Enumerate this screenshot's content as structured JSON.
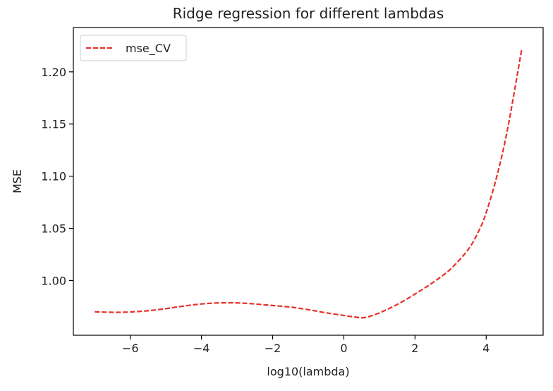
{
  "chart_data": {
    "type": "line",
    "title": "Ridge regression for different lambdas",
    "xlabel": "log10(lambda)",
    "ylabel": "MSE",
    "xlim": [
      -7.6,
      5.6
    ],
    "ylim": [
      0.9475,
      1.2425
    ],
    "xticks": [
      -6,
      -4,
      -2,
      0,
      2,
      4
    ],
    "xtick_labels": [
      "−6",
      "−4",
      "−2",
      "0",
      "2",
      "4"
    ],
    "yticks": [
      1.0,
      1.05,
      1.1,
      1.15,
      1.2
    ],
    "ytick_labels": [
      "1.00",
      "1.05",
      "1.10",
      "1.15",
      "1.20"
    ],
    "grid": false,
    "legend_position": "upper-left",
    "series": [
      {
        "name": "mse_CV",
        "color": "#e8302a",
        "linestyle": "dashed",
        "x": [
          -7,
          -6.5,
          -6,
          -5.5,
          -5,
          -4.5,
          -4,
          -3.5,
          -3,
          -2.5,
          -2,
          -1.5,
          -1,
          -0.5,
          0,
          0.3,
          0.6,
          1,
          1.5,
          2,
          2.5,
          3,
          3.5,
          3.8,
          4,
          4.3,
          4.6,
          5
        ],
        "y": [
          0.97,
          0.9695,
          0.9698,
          0.971,
          0.973,
          0.9755,
          0.9775,
          0.9785,
          0.9785,
          0.9775,
          0.976,
          0.9745,
          0.972,
          0.969,
          0.9665,
          0.965,
          0.9645,
          0.969,
          0.977,
          0.987,
          0.998,
          1.011,
          1.03,
          1.048,
          1.065,
          1.1,
          1.145,
          1.222
        ]
      }
    ]
  }
}
